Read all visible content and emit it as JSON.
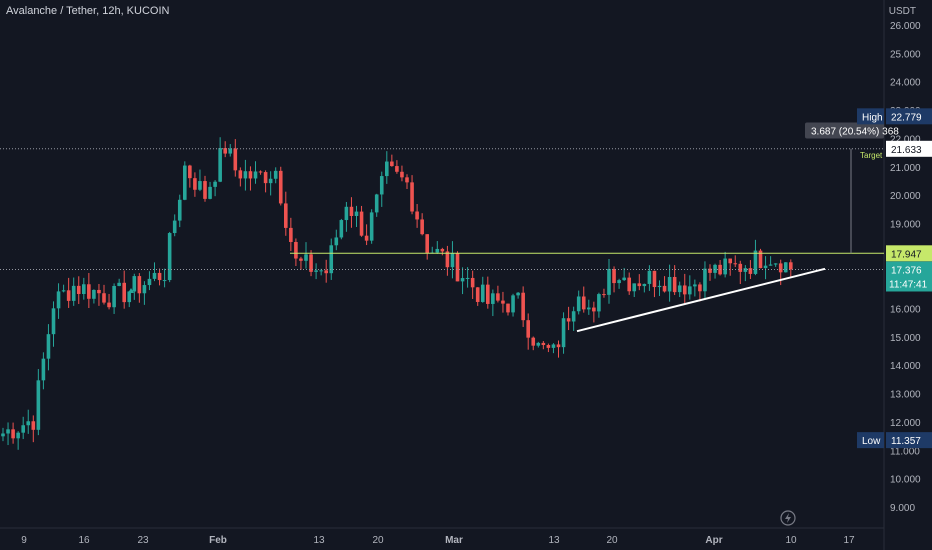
{
  "header": {
    "symbol_title": "Avalanche / Tether, 12h, KUCOIN",
    "currency": "USDT"
  },
  "chart_data": {
    "type": "candlestick",
    "title": "Avalanche / Tether, 12h, KUCOIN",
    "ylabel": "USDT",
    "ylim": [
      8.6,
      26.3
    ],
    "y_ticks": [
      "26.000",
      "25.000",
      "24.000",
      "23.000",
      "22.000",
      "21.000",
      "20.000",
      "19.000",
      "18.000",
      "17.000",
      "16.000",
      "15.000",
      "14.000",
      "13.000",
      "12.000",
      "11.000",
      "10.000",
      "9.000"
    ],
    "x_ticks": [
      "9",
      "16",
      "23",
      "Feb",
      "13",
      "20",
      "Mar",
      "13",
      "20",
      "Apr",
      "10",
      "17"
    ],
    "grid": false,
    "key_points": [
      {
        "t": 0,
        "price": 11.6
      },
      {
        "t": 6,
        "price": 12.1
      },
      {
        "t": 10,
        "price": 16.2
      },
      {
        "t": 14,
        "price": 16.8
      },
      {
        "t": 22,
        "price": 16.4
      },
      {
        "t": 28,
        "price": 16.9
      },
      {
        "t": 32,
        "price": 17.3
      },
      {
        "t": 36,
        "price": 21.0
      },
      {
        "t": 40,
        "price": 20.0
      },
      {
        "t": 44,
        "price": 21.7
      },
      {
        "t": 46,
        "price": 20.9
      },
      {
        "t": 50,
        "price": 20.6
      },
      {
        "t": 54,
        "price": 20.9
      },
      {
        "t": 58,
        "price": 17.6
      },
      {
        "t": 64,
        "price": 17.3
      },
      {
        "t": 68,
        "price": 19.8
      },
      {
        "t": 72,
        "price": 18.6
      },
      {
        "t": 76,
        "price": 20.8
      },
      {
        "t": 80,
        "price": 20.4
      },
      {
        "t": 84,
        "price": 18.2
      },
      {
        "t": 90,
        "price": 17.4
      },
      {
        "t": 96,
        "price": 16.2
      },
      {
        "t": 102,
        "price": 16.2
      },
      {
        "t": 106,
        "price": 14.6
      },
      {
        "t": 109,
        "price": 14.4
      },
      {
        "t": 114,
        "price": 16.8
      },
      {
        "t": 117,
        "price": 15.6
      },
      {
        "t": 120,
        "price": 17.4
      },
      {
        "t": 124,
        "price": 17.0
      },
      {
        "t": 130,
        "price": 17.1
      },
      {
        "t": 136,
        "price": 16.8
      },
      {
        "t": 140,
        "price": 17.3
      },
      {
        "t": 144,
        "price": 17.4
      },
      {
        "t": 148,
        "price": 17.6
      },
      {
        "t": 151,
        "price": 17.9
      },
      {
        "t": 154,
        "price": 17.7
      },
      {
        "t": 156,
        "price": 17.38
      }
    ],
    "price_labels": {
      "high": {
        "label": "High",
        "value": "22.779",
        "price": 22.779
      },
      "target": {
        "value": "21.633",
        "price": 21.633,
        "text": "Target"
      },
      "resistance": {
        "value": "17.947",
        "price": 17.947
      },
      "last": {
        "value": "17.376",
        "price": 17.376,
        "countdown": "11:47:41"
      },
      "low": {
        "label": "Low",
        "value": "11.357",
        "price": 11.357
      }
    },
    "measure": {
      "text": "3.687 (20.54%) 368",
      "from_price": 17.947,
      "to_price": 21.633
    },
    "trendline": {
      "from": {
        "t": 110,
        "price": 15.2
      },
      "to": {
        "t": 160,
        "price": 17.4
      }
    },
    "colors": {
      "up": "#26a69a",
      "down": "#ef5350",
      "resistance": "#c6e86a",
      "trendline": "#ffffff",
      "price_tag": "#26a69a",
      "high_low_tag": "#1e3a66",
      "target_tag": "#ffffff",
      "measure_bg": "#434651"
    }
  },
  "footer": {
    "logo_icon": "lightning-bolt-icon"
  }
}
